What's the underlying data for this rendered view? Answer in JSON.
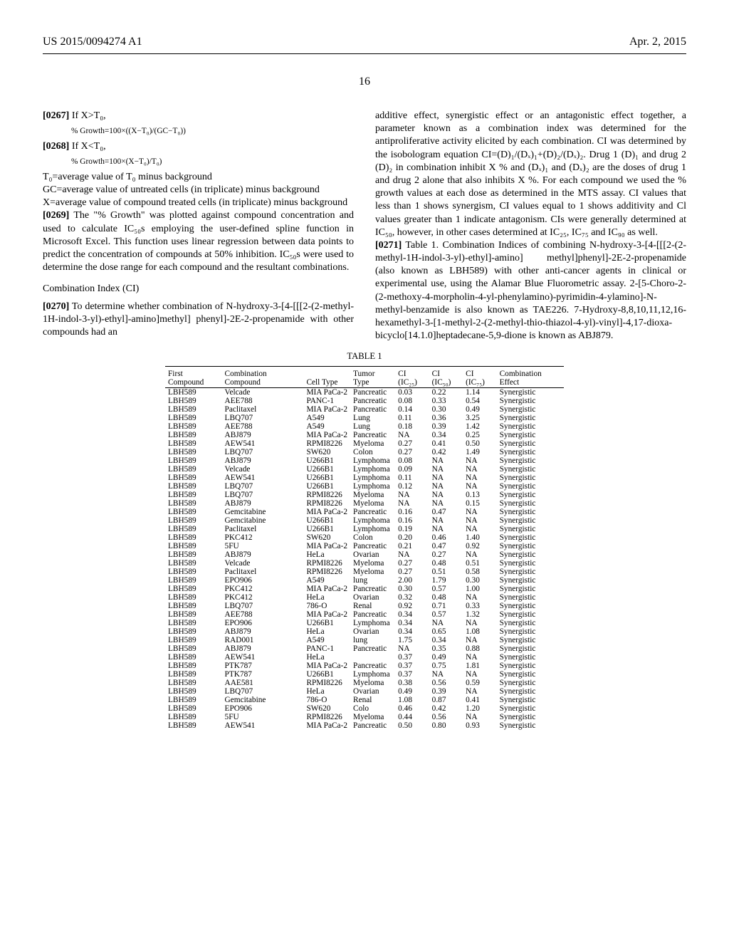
{
  "header": {
    "left": "US 2015/0094274 A1",
    "right": "Apr. 2, 2015"
  },
  "page_number": "16",
  "left_column": {
    "p0267_num": "[0267]",
    "p0267_text": "    If X>T₀,",
    "formula1": "% Growth=100×((X−T₀)/(GC−T₀))",
    "p0268_num": "[0268]",
    "p0268_text": "    If X<T₀,",
    "formula2": "% Growth=100×(X−T₀)/T₀)",
    "line1": "T₀=average value of T₀ minus background",
    "line2": "GC=average value of untreated cells (in triplicate) minus background",
    "line3": "X=average value of compound treated cells (in triplicate) minus background",
    "p0269_num": "[0269]",
    "p0269_text": "    The \"% Growth\" was plotted against compound concentration and used to calculate IC₅₀s employing the user-defined spline function in Microsoft Excel. This function uses linear regression between data points to predict the concentration of compounds at 50% inhibition. IC₅₀s were used to determine the dose range for each compound and the resultant combinations.",
    "ci_heading": "Combination Index (CI)",
    "p0270_num": "[0270]",
    "p0270_text": "    To determine whether combination of N-hydroxy-3-[4-[[[2-(2-methyl-1H-indol-3-yl)-ethyl]-amino]methyl] phenyl]-2E-2-propenamide with other compounds had an"
  },
  "right_column": {
    "para1": "additive effect, synergistic effect or an antagonistic effect together, a parameter known as a combination index was determined for the antiproliferative activity elicited by each combination. CI was determined by the isobologram equation CI=(D)₁/(Dₓ)₁+(D)₂/(Dₓ)₂. Drug 1 (D)₁ and drug 2 (D)₂ in combination inhibit X % and (Dₓ)₁ and (Dₓ)₂ are the doses of drug 1 and drug 2 alone that also inhibits X %. For each compound we used the % growth values at each dose as determined in the MTS assay. CI values that less than 1 shows synergism, CI values equal to 1 shows additivity and Cl values greater than 1 indicate antagonism. CIs were generally determined at IC₅₀, however, in other cases determined at IC₂₅, IC₇₅ and IC₉₀ as well.",
    "p0271_num": "[0271]",
    "p0271_text": "    Table 1. Combination Indices of combining N-hydroxy-3-[4-[[[2-(2-methyl-1H-indol-3-yl)-ethyl]-amino] methyl]phenyl]-2E-2-propenamide (also known as LBH589) with other anti-cancer agents in clinical or experimental use, using the Alamar Blue Fluorometric assay. 2-[5-Choro-2-(2-methoxy-4-morpholin-4-yl-phenylamino)-pyrimidin-4-ylamino]-N-methyl-benzamide is also known as TAE226. 7-Hydroxy-8,8,10,11,12,16-hexamethyl-3-[1-methyl-2-(2-methyl-thio-thiazol-4-yl)-vinyl]-4,17-dioxa-bicyclo[14.1.0]heptadecane-5,9-dione is known as ABJ879."
  },
  "table": {
    "caption": "TABLE 1",
    "columns": [
      "First Compound",
      "Combination Compound",
      "Cell Type",
      "Tumor Type",
      "CI (IC₂₅)",
      "CI (IC₅₀)",
      "CI (IC₇₅)",
      "Combination Effect"
    ],
    "rows": [
      [
        "LBH589",
        "Velcade",
        "MIA PaCa-2",
        "Pancreatic",
        "0.03",
        "0.22",
        "1.14",
        "Synergistic"
      ],
      [
        "LBH589",
        "AEE788",
        "PANC-1",
        "Pancreatic",
        "0.08",
        "0.33",
        "0.54",
        "Synergistic"
      ],
      [
        "LBH589",
        "Paclitaxel",
        "MIA PaCa-2",
        "Pancreatic",
        "0.14",
        "0.30",
        "0.49",
        "Synergistic"
      ],
      [
        "LBH589",
        "LBQ707",
        "A549",
        "Lung",
        "0.11",
        "0.36",
        "3.25",
        "Synergistic"
      ],
      [
        "LBH589",
        "AEE788",
        "A549",
        "Lung",
        "0.18",
        "0.39",
        "1.42",
        "Synergistic"
      ],
      [
        "LBH589",
        "ABJ879",
        "MIA PaCa-2",
        "Pancreatic",
        "NA",
        "0.34",
        "0.25",
        "Synergistic"
      ],
      [
        "LBH589",
        "AEW541",
        "RPMI8226",
        "Myeloma",
        "0.27",
        "0.41",
        "0.50",
        "Synergistic"
      ],
      [
        "LBH589",
        "LBQ707",
        "SW620",
        "Colon",
        "0.27",
        "0.42",
        "1.49",
        "Synergistic"
      ],
      [
        "LBH589",
        "ABJ879",
        "U266B1",
        "Lymphoma",
        "0.08",
        "NA",
        "NA",
        "Synergistic"
      ],
      [
        "LBH589",
        "Velcade",
        "U266B1",
        "Lymphoma",
        "0.09",
        "NA",
        "NA",
        "Synergistic"
      ],
      [
        "LBH589",
        "AEW541",
        "U266B1",
        "Lymphoma",
        "0.11",
        "NA",
        "NA",
        "Synergistic"
      ],
      [
        "LBH589",
        "LBQ707",
        "U266B1",
        "Lymphoma",
        "0.12",
        "NA",
        "NA",
        "Synergistic"
      ],
      [
        "LBH589",
        "LBQ707",
        "RPMI8226",
        "Myeloma",
        "NA",
        "NA",
        "0.13",
        "Synergistic"
      ],
      [
        "LBH589",
        "ABJ879",
        "RPMI8226",
        "Myeloma",
        "NA",
        "NA",
        "0.15",
        "Synergistic"
      ],
      [
        "LBH589",
        "Gemcitabine",
        "MIA PaCa-2",
        "Pancreatic",
        "0.16",
        "0.47",
        "NA",
        "Synergistic"
      ],
      [
        "LBH589",
        "Gemcitabine",
        "U266B1",
        "Lymphoma",
        "0.16",
        "NA",
        "NA",
        "Synergistic"
      ],
      [
        "LBH589",
        "Paclitaxel",
        "U266B1",
        "Lymphoma",
        "0.19",
        "NA",
        "NA",
        "Synergistic"
      ],
      [
        "LBH589",
        "PKC412",
        "SW620",
        "Colon",
        "0.20",
        "0.46",
        "1.40",
        "Synergistic"
      ],
      [
        "LBH589",
        "5FU",
        "MIA PaCa-2",
        "Pancreatic",
        "0.21",
        "0.47",
        "0.92",
        "Synergistic"
      ],
      [
        "LBH589",
        "ABJ879",
        "HeLa",
        "Ovarian",
        "NA",
        "0.27",
        "NA",
        "Synergistic"
      ],
      [
        "LBH589",
        "Velcade",
        "RPMI8226",
        "Myeloma",
        "0.27",
        "0.48",
        "0.51",
        "Synergistic"
      ],
      [
        "LBH589",
        "Paclitaxel",
        "RPMI8226",
        "Myeloma",
        "0.27",
        "0.51",
        "0.58",
        "Synergistic"
      ],
      [
        "LBH589",
        "EPO906",
        "A549",
        "lung",
        "2.00",
        "1.79",
        "0.30",
        "Synergistic"
      ],
      [
        "LBH589",
        "PKC412",
        "MIA PaCa-2",
        "Pancreatic",
        "0.30",
        "0.57",
        "1.00",
        "Synergistic"
      ],
      [
        "LBH589",
        "PKC412",
        "HeLa",
        "Ovarian",
        "0.32",
        "0.48",
        "NA",
        "Synergistic"
      ],
      [
        "LBH589",
        "LBQ707",
        "786-O",
        "Renal",
        "0.92",
        "0.71",
        "0.33",
        "Synergistic"
      ],
      [
        "LBH589",
        "AEE788",
        "MIA PaCa-2",
        "Pancreatic",
        "0.34",
        "0.57",
        "1.32",
        "Synergistic"
      ],
      [
        "LBH589",
        "EPO906",
        "U266B1",
        "Lymphoma",
        "0.34",
        "NA",
        "NA",
        "Synergistic"
      ],
      [
        "LBH589",
        "ABJ879",
        "HeLa",
        "Ovarian",
        "0.34",
        "0.65",
        "1.08",
        "Synergistic"
      ],
      [
        "LBH589",
        "RAD001",
        "A549",
        "lung",
        "1.75",
        "0.34",
        "NA",
        "Synergistic"
      ],
      [
        "LBH589",
        "ABJ879",
        "PANC-1",
        "Pancreatic",
        "NA",
        "0.35",
        "0.88",
        "Synergistic"
      ],
      [
        "LBH589",
        "AEW541",
        "HeLa",
        "",
        "0.37",
        "0.49",
        "NA",
        "Synergistic"
      ],
      [
        "LBH589",
        "PTK787",
        "MIA PaCa-2",
        "Pancreatic",
        "0.37",
        "0.75",
        "1.81",
        "Synergistic"
      ],
      [
        "LBH589",
        "PTK787",
        "U266B1",
        "Lymphoma",
        "0.37",
        "NA",
        "NA",
        "Synergistic"
      ],
      [
        "LBH589",
        "AAE581",
        "RPMI8226",
        "Myeloma",
        "0.38",
        "0.56",
        "0.59",
        "Synergistic"
      ],
      [
        "LBH589",
        "LBQ707",
        "HeLa",
        "Ovarian",
        "0.49",
        "0.39",
        "NA",
        "Synergistic"
      ],
      [
        "LBH589",
        "Gemcitabine",
        "786-O",
        "Renal",
        "1.08",
        "0.87",
        "0.41",
        "Synergistic"
      ],
      [
        "LBH589",
        "EPO906",
        "SW620",
        "Colo",
        "0.46",
        "0.42",
        "1.20",
        "Synergistic"
      ],
      [
        "LBH589",
        "5FU",
        "RPMI8226",
        "Myeloma",
        "0.44",
        "0.56",
        "NA",
        "Synergistic"
      ],
      [
        "LBH589",
        "AEW541",
        "MIA PaCa-2",
        "Pancreatic",
        "0.50",
        "0.80",
        "0.93",
        "Synergistic"
      ]
    ]
  }
}
